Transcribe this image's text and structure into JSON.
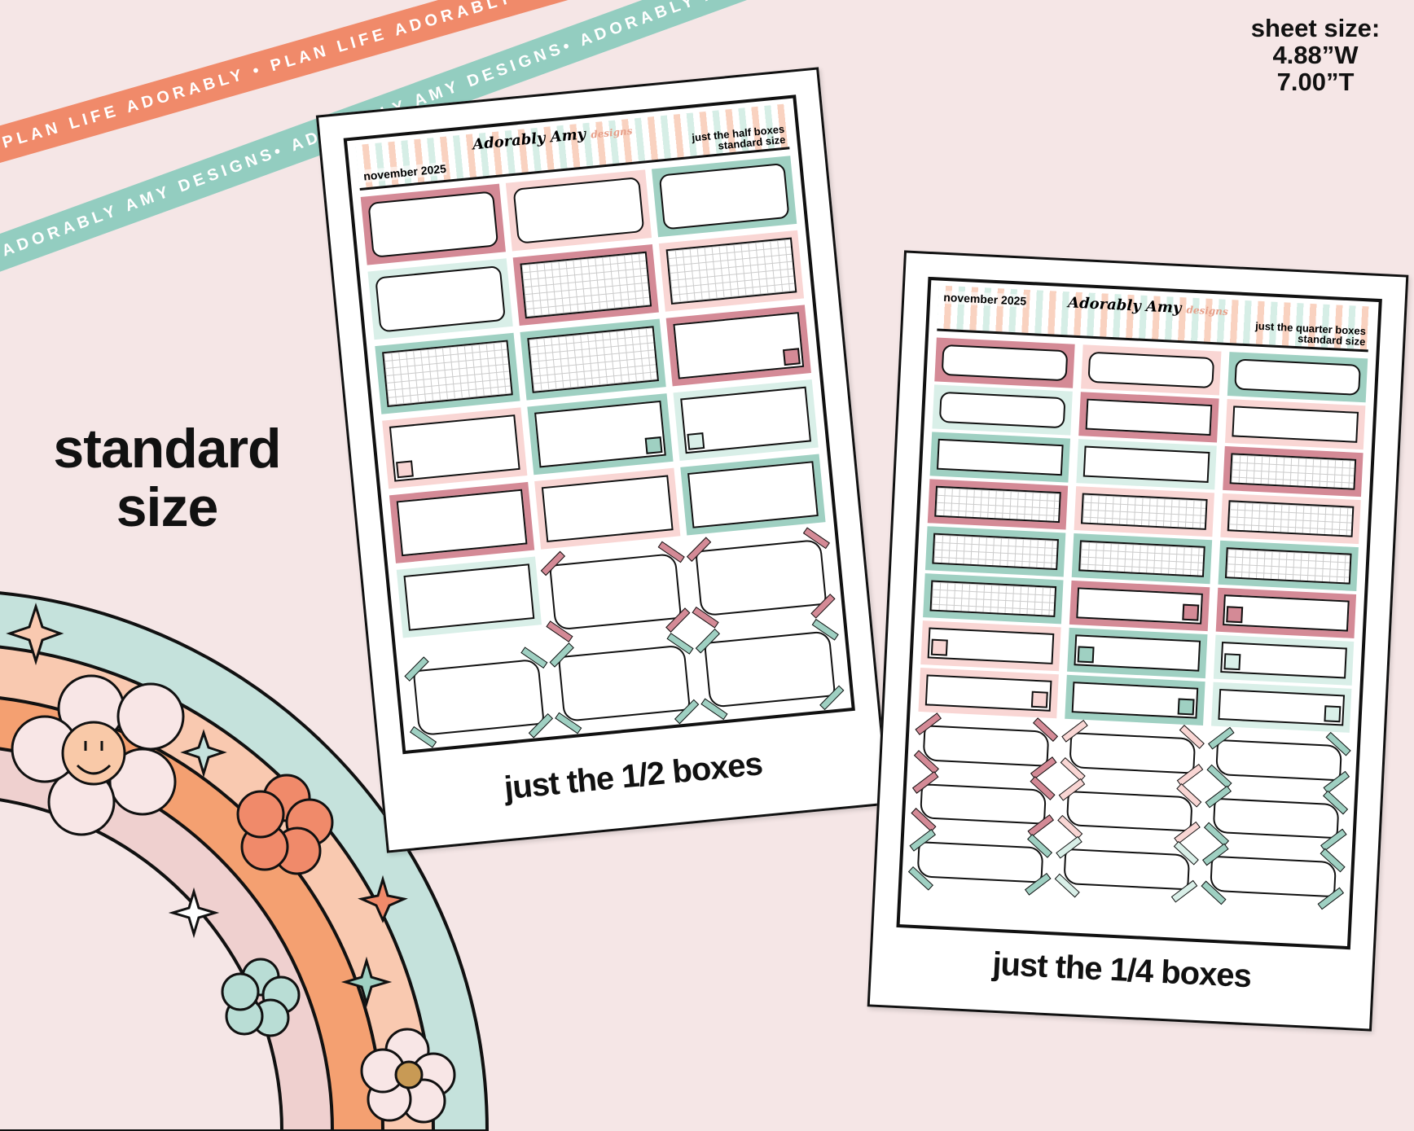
{
  "colors": {
    "dkpink": "#d48a96",
    "ltpink": "#f9d6d4",
    "mint": "#9fd0c2",
    "mintlt": "#d9efe8",
    "orange": "#f08a6a",
    "peach": "#f9c9b0",
    "background": "#f5e6e6"
  },
  "ribbons": {
    "orange": "PLAN LIFE ADORABLY • PLAN LIFE ADORABLY • PLAN LIFE ADORABLY •",
    "mint": "ADORABLY AMY DESIGNS• ADORABLY AMY DESIGNS• ADORABLY AMY DESIGNS •"
  },
  "label": {
    "line1": "standard",
    "line2": "size"
  },
  "sheet_size": {
    "title": "sheet size:",
    "width": "4.88”W",
    "height": "7.00”T"
  },
  "left_sheet": {
    "month": "november 2025",
    "logo": "Adorably Amy",
    "logo_sub": "designs",
    "kit_line1": "just the half boxes",
    "kit_line2": "standard size",
    "caption": "just the 1/2 boxes",
    "stickers": [
      [
        "dkpink",
        "rounded"
      ],
      [
        "ltpink",
        "rounded"
      ],
      [
        "mint",
        "rounded"
      ],
      [
        "mintlt",
        "rounded"
      ],
      [
        "dkpink",
        "grid"
      ],
      [
        "ltpink",
        "grid"
      ],
      [
        "mint",
        "grid"
      ],
      [
        "mint",
        "grid"
      ],
      [
        "dkpink",
        "square-br"
      ],
      [
        "ltpink",
        "square-bl"
      ],
      [
        "mint",
        "square-br"
      ],
      [
        "mintlt",
        "square-bl"
      ],
      [
        "dkpink",
        "plain"
      ],
      [
        "ltpink",
        "plain"
      ],
      [
        "mint",
        "plain"
      ],
      [
        "mintlt",
        "plain"
      ],
      [
        "dkpink",
        "taped"
      ],
      [
        "dkpink",
        "taped"
      ],
      [
        "mint",
        "taped"
      ],
      [
        "mint",
        "taped"
      ],
      [
        "mint",
        "taped"
      ]
    ]
  },
  "right_sheet": {
    "month": "november 2025",
    "logo": "Adorably Amy",
    "logo_sub": "designs",
    "kit_line1": "just the quarter boxes",
    "kit_line2": "standard size",
    "caption": "just the 1/4 boxes",
    "stickers": [
      [
        "dkpink",
        "rounded"
      ],
      [
        "ltpink",
        "rounded"
      ],
      [
        "mint",
        "rounded"
      ],
      [
        "mintlt",
        "rounded"
      ],
      [
        "dkpink",
        "plain"
      ],
      [
        "ltpink",
        "plain"
      ],
      [
        "mint",
        "plain"
      ],
      [
        "mintlt",
        "plain"
      ],
      [
        "dkpink",
        "grid"
      ],
      [
        "dkpink",
        "grid"
      ],
      [
        "ltpink",
        "grid"
      ],
      [
        "ltpink",
        "grid"
      ],
      [
        "mint",
        "grid"
      ],
      [
        "mint",
        "grid"
      ],
      [
        "mint",
        "grid"
      ],
      [
        "mint",
        "grid"
      ],
      [
        "dkpink",
        "square-br"
      ],
      [
        "dkpink",
        "square-bl"
      ],
      [
        "ltpink",
        "square-bl"
      ],
      [
        "mint",
        "square-bl"
      ],
      [
        "mintlt",
        "square-bl"
      ],
      [
        "ltpink",
        "square-br"
      ],
      [
        "mint",
        "square-br"
      ],
      [
        "mintlt",
        "square-br"
      ],
      [
        "dkpink",
        "taped"
      ],
      [
        "ltpink",
        "taped"
      ],
      [
        "mint",
        "taped"
      ],
      [
        "dkpink",
        "taped"
      ],
      [
        "ltpink",
        "taped"
      ],
      [
        "mint",
        "taped"
      ],
      [
        "mint",
        "taped"
      ],
      [
        "mintlt",
        "taped"
      ],
      [
        "mint",
        "taped"
      ]
    ]
  }
}
